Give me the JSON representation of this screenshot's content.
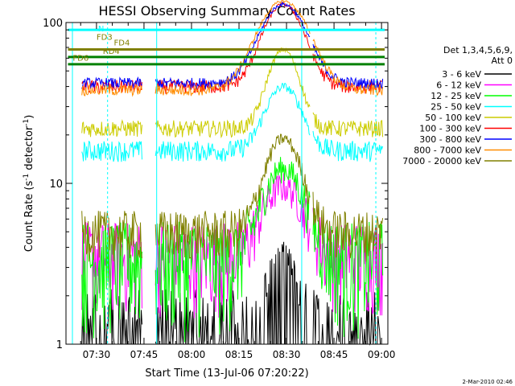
{
  "chart_data": {
    "type": "line",
    "title": "HESSI Observing Summary Count Rates",
    "xlabel": "Start Time (13-Jul-06 07:20:22)",
    "ylabel_main": "Count Rate (s",
    "ylabel_sup1": "-1",
    "ylabel_mid": " detector",
    "ylabel_sup2": "-1",
    "ylabel_end": ")",
    "x_range": [
      "07:20:22",
      "09:02"
    ],
    "y_scale": "log",
    "y_range": [
      1,
      100
    ],
    "x_ticks": [
      "07:30",
      "07:45",
      "08:00",
      "08:15",
      "08:30",
      "08:45",
      "09:00"
    ],
    "x_tick_minutes": [
      30,
      45,
      60,
      75,
      90,
      105,
      120
    ],
    "y_tick_labels": [
      "1",
      "10",
      "100"
    ],
    "legend_header": [
      "Det 1,3,4,5,6,9,",
      "Att 0"
    ],
    "legend_position": "right",
    "series": [
      {
        "name": "3 - 6 keV",
        "color": "#000000"
      },
      {
        "name": "6 - 12 keV",
        "color": "#ff00ff"
      },
      {
        "name": "12 - 25 keV",
        "color": "#00ff00"
      },
      {
        "name": "25 - 50 keV",
        "color": "#00ffff"
      },
      {
        "name": "50 - 100 keV",
        "color": "#cccc00"
      },
      {
        "name": "100 - 300 keV",
        "color": "#ff0000"
      },
      {
        "name": "300 - 800 keV",
        "color": "#0000ff"
      },
      {
        "name": "800 - 7000 keV",
        "color": "#ff8c00"
      },
      {
        "name": "7000 - 20000 keV",
        "color": "#808000"
      }
    ],
    "annotations": [
      {
        "text": "N",
        "color": "#00ffff"
      },
      {
        "text": "FD3",
        "color": "#808000"
      },
      {
        "text": "FD4",
        "color": "#808000"
      },
      {
        "text": "FD6",
        "color": "#808000"
      },
      {
        "text": "RD4",
        "color": "#808000"
      }
    ],
    "timestamp": "2-Mar-2010 02:46"
  }
}
